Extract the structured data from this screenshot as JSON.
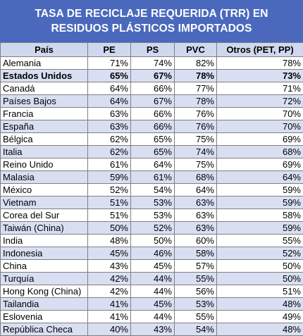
{
  "chart_data": {
    "type": "table",
    "title": [
      "TASA DE RECICLAJE REQUERIDA (TRR) EN",
      "RESIDUOS PLÁSTICOS IMPORTADOS"
    ],
    "columns": [
      "País",
      "PE",
      "PS",
      "PVC",
      "Otros (PET, PP)"
    ],
    "rows": [
      [
        "Alemania",
        "71%",
        "74%",
        "82%",
        "78%"
      ],
      [
        "Estados Unidos",
        "65%",
        "67%",
        "78%",
        "73%"
      ],
      [
        "Canadá",
        "64%",
        "66%",
        "77%",
        "71%"
      ],
      [
        "Países Bajos",
        "64%",
        "67%",
        "78%",
        "72%"
      ],
      [
        "Francia",
        "63%",
        "66%",
        "76%",
        "70%"
      ],
      [
        "España",
        "63%",
        "66%",
        "76%",
        "70%"
      ],
      [
        "Bélgica",
        "62%",
        "65%",
        "75%",
        "69%"
      ],
      [
        "Italia",
        "62%",
        "65%",
        "74%",
        "68%"
      ],
      [
        "Reino Unido",
        "61%",
        "64%",
        "75%",
        "69%"
      ],
      [
        "Malasia",
        "59%",
        "61%",
        "68%",
        "64%"
      ],
      [
        "México",
        "52%",
        "54%",
        "64%",
        "59%"
      ],
      [
        "Vietnam",
        "51%",
        "53%",
        "63%",
        "59%"
      ],
      [
        "Corea del Sur",
        "51%",
        "53%",
        "63%",
        "58%"
      ],
      [
        "Taiwán (China)",
        "50%",
        "52%",
        "63%",
        "59%"
      ],
      [
        "India",
        "48%",
        "50%",
        "60%",
        "55%"
      ],
      [
        "Indonesia",
        "45%",
        "46%",
        "58%",
        "52%"
      ],
      [
        "China",
        "43%",
        "45%",
        "57%",
        "50%"
      ],
      [
        "Turquía",
        "42%",
        "44%",
        "55%",
        "50%"
      ],
      [
        "Hong Kong (China)",
        "42%",
        "44%",
        "56%",
        "51%"
      ],
      [
        "Tailandia",
        "41%",
        "45%",
        "53%",
        "48%"
      ],
      [
        "Eslovenia",
        "41%",
        "44%",
        "55%",
        "49%"
      ],
      [
        "República Checa",
        "40%",
        "43%",
        "54%",
        "48%"
      ]
    ],
    "bold_row": "Estados Unidos"
  }
}
